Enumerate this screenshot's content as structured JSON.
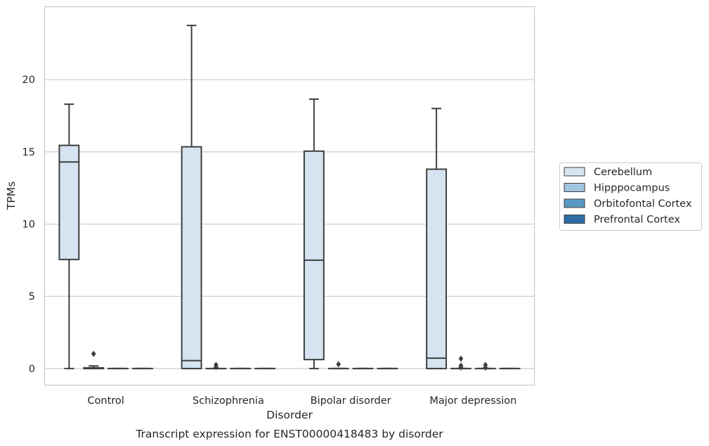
{
  "chart_data": {
    "type": "box",
    "caption": "Transcript expression for ENST00000418483 by disorder",
    "xlabel": "Disorder",
    "ylabel": "TPMs",
    "ylim": [
      -1.15,
      25.05
    ],
    "yticks": [
      0,
      5,
      10,
      15,
      20
    ],
    "grid": "horizontal",
    "legend_position": "right",
    "categories": [
      "Control",
      "Schizophrenia",
      "Bipolar disorder",
      "Major depression"
    ],
    "series": [
      {
        "name": "Cerebellum",
        "color": "#d6e4f1",
        "boxes": [
          {
            "whislo": 0.0,
            "q1": 7.55,
            "med": 14.3,
            "q3": 15.45,
            "whishi": 18.3,
            "fliers": []
          },
          {
            "whislo": 0.0,
            "q1": 0.0,
            "med": 0.55,
            "q3": 15.35,
            "whishi": 23.75,
            "fliers": []
          },
          {
            "whislo": 0.0,
            "q1": 0.62,
            "med": 7.5,
            "q3": 15.05,
            "whishi": 18.65,
            "fliers": []
          },
          {
            "whislo": 0.0,
            "q1": 0.0,
            "med": 0.72,
            "q3": 13.8,
            "whishi": 18.0,
            "fliers": []
          }
        ]
      },
      {
        "name": "Hipppocampus",
        "color": "#9fc5df",
        "boxes": [
          {
            "whislo": 0.0,
            "q1": 0.0,
            "med": 0.0,
            "q3": 0.05,
            "whishi": 0.18,
            "fliers": [
              1.02
            ]
          },
          {
            "whislo": 0.0,
            "q1": 0.0,
            "med": 0.0,
            "q3": 0.0,
            "whishi": 0.0,
            "fliers": [
              0.1,
              0.25
            ]
          },
          {
            "whislo": 0.0,
            "q1": 0.0,
            "med": 0.0,
            "q3": 0.0,
            "whishi": 0.0,
            "fliers": [
              0.3
            ]
          },
          {
            "whislo": 0.0,
            "q1": 0.0,
            "med": 0.0,
            "q3": 0.0,
            "whishi": 0.0,
            "fliers": [
              0.08,
              0.2,
              0.68
            ]
          }
        ]
      },
      {
        "name": "Orbitofontal Cortex",
        "color": "#5b97c4",
        "boxes": [
          {
            "whislo": 0.0,
            "q1": 0.0,
            "med": 0.0,
            "q3": 0.0,
            "whishi": 0.0,
            "fliers": []
          },
          {
            "whislo": 0.0,
            "q1": 0.0,
            "med": 0.0,
            "q3": 0.0,
            "whishi": 0.0,
            "fliers": []
          },
          {
            "whislo": 0.0,
            "q1": 0.0,
            "med": 0.0,
            "q3": 0.0,
            "whishi": 0.0,
            "fliers": []
          },
          {
            "whislo": 0.0,
            "q1": 0.0,
            "med": 0.0,
            "q3": 0.0,
            "whishi": 0.0,
            "fliers": [
              0.07,
              0.25
            ]
          }
        ]
      },
      {
        "name": "Prefrontal Cortex",
        "color": "#2f6ca6",
        "boxes": [
          {
            "whislo": 0.0,
            "q1": 0.0,
            "med": 0.0,
            "q3": 0.0,
            "whishi": 0.0,
            "fliers": []
          },
          {
            "whislo": 0.0,
            "q1": 0.0,
            "med": 0.0,
            "q3": 0.0,
            "whishi": 0.0,
            "fliers": []
          },
          {
            "whislo": 0.0,
            "q1": 0.0,
            "med": 0.0,
            "q3": 0.0,
            "whishi": 0.0,
            "fliers": []
          },
          {
            "whislo": 0.0,
            "q1": 0.0,
            "med": 0.0,
            "q3": 0.0,
            "whishi": 0.0,
            "fliers": []
          }
        ]
      }
    ]
  }
}
